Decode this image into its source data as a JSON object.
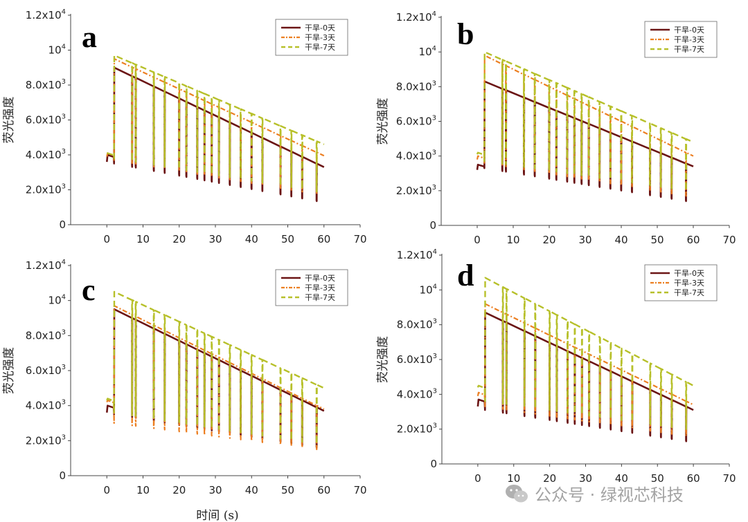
{
  "xlabel": "时间 (s)",
  "watermark": "公众号 · 绿视芯科技",
  "colors": {
    "d0": "#6b1414",
    "d3": "#ec7f22",
    "d7": "#b7c02a"
  },
  "chart_data": [
    {
      "type": "line",
      "panel_label": "a",
      "ylabel": "荧光强度",
      "xlabel": "",
      "xlim": [
        -10,
        70
      ],
      "ylim": [
        0,
        12000
      ],
      "xticks": [
        "0",
        "10",
        "20",
        "30",
        "40",
        "50",
        "60",
        "70"
      ],
      "yticks": [
        "0",
        "2.0x10³",
        "4.0x10³",
        "6.0x10³",
        "8.0x10³",
        "10⁴",
        "1.2x10⁴"
      ],
      "legend_position": "top-right",
      "pulse_times": [
        2,
        7,
        8,
        13,
        16,
        20,
        22,
        25,
        27,
        29,
        31,
        34,
        37,
        40,
        43,
        48,
        51,
        54,
        58
      ],
      "series": [
        {
          "name": "干旱-0天",
          "style": "solid",
          "start": [
            0,
            3600
          ],
          "pre": 4000,
          "low_start": 3500,
          "low_end": 1350,
          "high_start": 9000,
          "high_end": 3300
        },
        {
          "name": "干旱-3天",
          "style": "dashdot",
          "start": [
            0,
            3900
          ],
          "pre": 4100,
          "low_start": 3700,
          "low_end": 1750,
          "high_start": 9500,
          "high_end": 3950
        },
        {
          "name": "干旱-7天",
          "style": "dashed",
          "start": [
            0,
            4100
          ],
          "pre": 4100,
          "low_start": 3800,
          "low_end": 1900,
          "high_start": 9700,
          "high_end": 4600
        }
      ]
    },
    {
      "type": "line",
      "panel_label": "b",
      "ylabel": "荧光强度",
      "xlabel": "",
      "xlim": [
        -10,
        70
      ],
      "ylim": [
        0,
        12000
      ],
      "xticks": [
        "0",
        "10",
        "20",
        "30",
        "40",
        "50",
        "60",
        "70"
      ],
      "yticks": [
        "0",
        "2.0x10³",
        "4.0x10³",
        "6.0x10³",
        "8.0x10³",
        "10⁴",
        "1.2x10⁴"
      ],
      "legend_position": "top-right",
      "pulse_times": [
        2,
        7,
        8,
        13,
        16,
        20,
        22,
        25,
        27,
        29,
        31,
        34,
        37,
        40,
        43,
        48,
        51,
        54,
        58
      ],
      "series": [
        {
          "name": "干旱-0天",
          "style": "solid",
          "start": [
            0,
            3200
          ],
          "pre": 3500,
          "low_start": 3300,
          "low_end": 1400,
          "high_start": 8300,
          "high_end": 3400
        },
        {
          "name": "干旱-3天",
          "style": "dashdot",
          "start": [
            0,
            3800
          ],
          "pre": 4000,
          "low_start": 3600,
          "low_end": 1700,
          "high_start": 9800,
          "high_end": 4000
        },
        {
          "name": "干旱-7天",
          "style": "dashed",
          "start": [
            0,
            4100
          ],
          "pre": 4200,
          "low_start": 3700,
          "low_end": 2000,
          "high_start": 10000,
          "high_end": 4800
        }
      ]
    },
    {
      "type": "line",
      "panel_label": "c",
      "ylabel": "荧光强度",
      "xlabel": "",
      "xlim": [
        -10,
        70
      ],
      "ylim": [
        0,
        12000
      ],
      "xticks": [
        "0",
        "10",
        "20",
        "30",
        "40",
        "50",
        "60",
        "70"
      ],
      "yticks": [
        "0",
        "2.0x10³",
        "4.0x10³",
        "6.0x10³",
        "8.0x10³",
        "10⁴",
        "1.2x10⁴"
      ],
      "legend_position": "top-right",
      "pulse_times": [
        2,
        7,
        8,
        13,
        16,
        20,
        22,
        25,
        27,
        29,
        31,
        34,
        37,
        40,
        43,
        48,
        51,
        54,
        58
      ],
      "series": [
        {
          "name": "干旱-0天",
          "style": "solid",
          "start": [
            0,
            3600
          ],
          "pre": 4000,
          "low_start": 3500,
          "low_end": 1600,
          "high_start": 9500,
          "high_end": 3700
        },
        {
          "name": "干旱-3天",
          "style": "dashdot",
          "start": [
            0,
            4200
          ],
          "pre": 4300,
          "low_start": 3000,
          "low_end": 1500,
          "high_start": 9700,
          "high_end": 3800
        },
        {
          "name": "干旱-7天",
          "style": "dashed",
          "start": [
            0,
            4300
          ],
          "pre": 4400,
          "low_start": 3600,
          "low_end": 1800,
          "high_start": 10500,
          "high_end": 5000
        }
      ]
    },
    {
      "type": "line",
      "panel_label": "d",
      "ylabel": "荧光强度",
      "xlabel": "时间 (s)",
      "xlim": [
        -10,
        70
      ],
      "ylim": [
        0,
        12000
      ],
      "xticks": [
        "0",
        "10",
        "20",
        "30",
        "40",
        "50",
        "60",
        "70"
      ],
      "yticks": [
        "0",
        "2.0x10³",
        "4.0x10³",
        "6.0x10³",
        "8.0x10³",
        "10⁴",
        "1.2x10⁴"
      ],
      "legend_position": "top-right",
      "pulse_times": [
        2,
        7,
        8,
        13,
        16,
        20,
        22,
        25,
        27,
        29,
        31,
        34,
        37,
        40,
        43,
        48,
        51,
        54,
        58
      ],
      "series": [
        {
          "name": "干旱-0天",
          "style": "solid",
          "start": [
            0,
            3300
          ],
          "pre": 3700,
          "low_start": 3100,
          "low_end": 1300,
          "high_start": 8700,
          "high_end": 3100
        },
        {
          "name": "干旱-3天",
          "style": "dashdot",
          "start": [
            0,
            3900
          ],
          "pre": 4100,
          "low_start": 3300,
          "low_end": 1600,
          "high_start": 9200,
          "high_end": 3400
        },
        {
          "name": "干旱-7天",
          "style": "dashed",
          "start": [
            0,
            4400
          ],
          "pre": 4500,
          "low_start": 3600,
          "low_end": 2000,
          "high_start": 10700,
          "high_end": 4500
        }
      ]
    }
  ]
}
